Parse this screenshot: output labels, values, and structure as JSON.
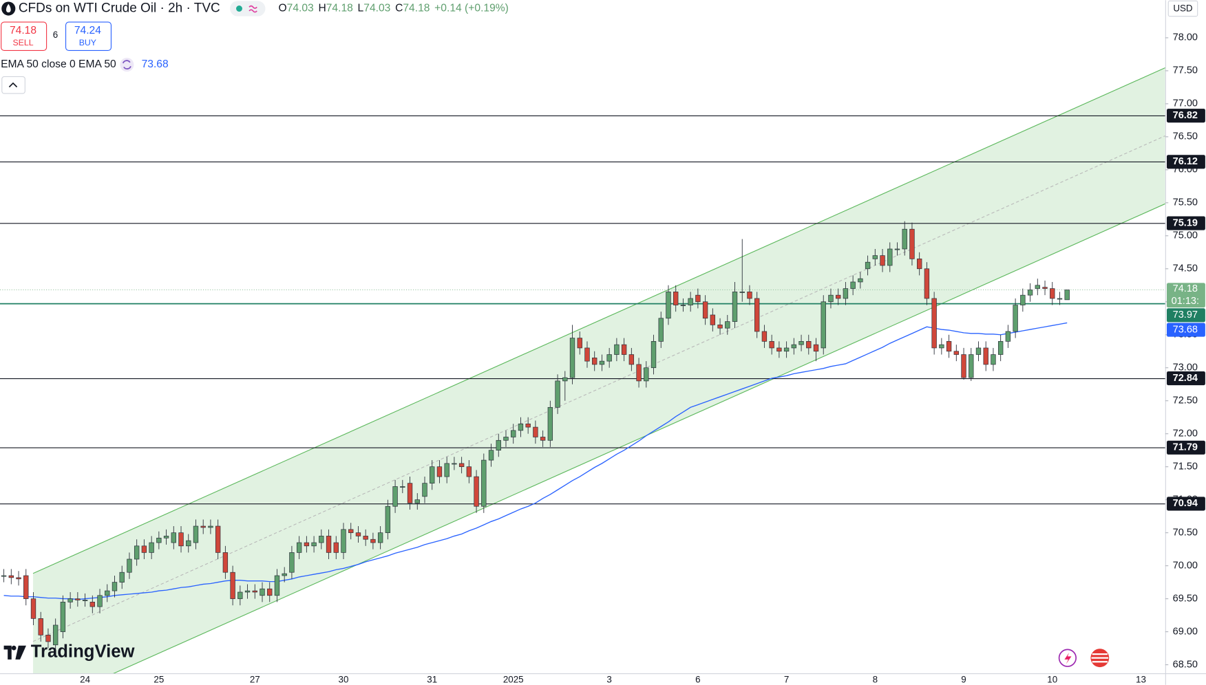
{
  "header": {
    "title": "CFDs on WTI Crude Oil · 2h · TVC",
    "ohlc": [
      {
        "label": "O",
        "value": 74.03
      },
      {
        "label": "H",
        "value": 74.18
      },
      {
        "label": "L",
        "value": 74.03
      },
      {
        "label": "C",
        "value": 74.18
      }
    ],
    "change": "+0.14 (+0.19%)"
  },
  "trade": {
    "sell_price": 74.18,
    "sell_label": "SELL",
    "spread": 6,
    "buy_price": 74.24,
    "buy_label": "BUY"
  },
  "currency": "USD",
  "logo": "TradingView",
  "chart_data": {
    "type": "candlestick",
    "title": "CFDs on WTI Crude Oil · 2h · TVC",
    "up_color": "#5f9f6e",
    "down_color": "#d0473a",
    "ylim": [
      68.37,
      78.57
    ],
    "yticks": [
      {
        "value": 68.5,
        "label": "68.50"
      },
      {
        "value": 69,
        "label": "69.00"
      },
      {
        "value": 69.5,
        "label": "69.50"
      },
      {
        "value": 70,
        "label": "70.00"
      },
      {
        "value": 70.5,
        "label": "70.50"
      },
      {
        "value": 71,
        "label": "71.00"
      },
      {
        "value": 71.5,
        "label": "71.50"
      },
      {
        "value": 72,
        "label": "72.00"
      },
      {
        "value": 72.5,
        "label": "72.50"
      },
      {
        "value": 73,
        "label": "73.00"
      },
      {
        "value": 73.5,
        "label": "73.50"
      },
      {
        "value": 74,
        "label": "74.00"
      },
      {
        "value": 74.5,
        "label": "74.50"
      },
      {
        "value": 75,
        "label": "75.00"
      },
      {
        "value": 75.5,
        "label": "75.50"
      },
      {
        "value": 76,
        "label": "76.00"
      },
      {
        "value": 76.5,
        "label": "76.50"
      },
      {
        "value": 77,
        "label": "77.00"
      },
      {
        "value": 77.5,
        "label": "77.50"
      },
      {
        "value": 78,
        "label": "78.00"
      }
    ],
    "levels": [
      76.82,
      76.12,
      75.19,
      72.84,
      71.79,
      70.94
    ],
    "support": {
      "value": 73.97,
      "color": "#1f7f62"
    },
    "price_label": {
      "value": 74.18,
      "countdown": "01:13:",
      "color": "#78b386"
    },
    "categories": [
      null,
      null,
      null,
      null,
      null,
      null,
      null,
      null,
      null,
      null,
      null,
      "24",
      null,
      null,
      null,
      null,
      null,
      null,
      null,
      null,
      null,
      "25",
      null,
      null,
      null,
      null,
      null,
      null,
      null,
      null,
      null,
      null,
      null,
      null,
      "27",
      null,
      null,
      null,
      null,
      null,
      null,
      null,
      null,
      null,
      null,
      null,
      "30",
      null,
      null,
      null,
      null,
      null,
      null,
      null,
      null,
      null,
      null,
      null,
      "31",
      null,
      null,
      null,
      null,
      null,
      null,
      null,
      null,
      null,
      null,
      "2025",
      null,
      null,
      null,
      null,
      null,
      null,
      null,
      null,
      null,
      null,
      null,
      null,
      "3",
      null,
      null,
      null,
      null,
      null,
      null,
      null,
      null,
      null,
      null,
      null,
      "6",
      null,
      null,
      null,
      null,
      null,
      null,
      null,
      null,
      null,
      null,
      null,
      "7",
      null,
      null,
      null,
      null,
      null,
      null,
      null,
      null,
      null,
      null,
      null,
      "8",
      null,
      null,
      null,
      null,
      null,
      null,
      null,
      null,
      null,
      null,
      null,
      "9",
      null,
      null,
      null,
      null,
      null,
      null,
      null,
      null,
      null,
      null,
      null,
      "10",
      null,
      null,
      null,
      null,
      null,
      null,
      null,
      null,
      null,
      null,
      null,
      "13",
      null,
      null,
      null
    ],
    "open": [
      69.85,
      69.85,
      69.82,
      69.85,
      69.5,
      69.2,
      68.95,
      68.8,
      69.0,
      69.45,
      69.5,
      69.48,
      69.45,
      69.38,
      69.55,
      69.62,
      69.75,
      69.9,
      70.1,
      70.3,
      70.2,
      70.35,
      70.42,
      70.35,
      70.5,
      70.3,
      70.35,
      70.6,
      70.58,
      70.6,
      70.2,
      69.9,
      69.5,
      69.6,
      69.62,
      69.55,
      69.65,
      69.55,
      69.85,
      69.9,
      70.2,
      70.35,
      70.3,
      70.35,
      70.45,
      70.35,
      70.2,
      70.55,
      70.5,
      70.45,
      70.4,
      70.35,
      70.5,
      70.9,
      71.2,
      71.25,
      70.95,
      71.05,
      71.25,
      71.5,
      71.35,
      71.55,
      71.55,
      71.5,
      71.35,
      70.9,
      71.6,
      71.75,
      71.9,
      71.95,
      72.05,
      72.15,
      72.1,
      71.95,
      71.9,
      72.4,
      72.8,
      72.85,
      73.45,
      73.3,
      73.15,
      73.05,
      73.1,
      73.2,
      73.35,
      73.2,
      73.05,
      72.8,
      73.0,
      73.4,
      73.75,
      74.15,
      73.95,
      73.95,
      74.1,
      74.0,
      73.8,
      73.65,
      73.6,
      73.7,
      74.15,
      74.15,
      74.05,
      73.55,
      73.4,
      73.3,
      73.25,
      73.3,
      73.35,
      73.4,
      73.35,
      73.3,
      74.0,
      74.1,
      74.05,
      74.2,
      74.3,
      74.5,
      74.65,
      74.7,
      74.55,
      74.8,
      74.8,
      75.1,
      74.65,
      74.5,
      74.05,
      73.3,
      73.4,
      73.25,
      73.2,
      72.85,
      73.2,
      73.3,
      73.05,
      73.2,
      73.4,
      73.55,
      73.95,
      74.1,
      74.2,
      74.22,
      74.2,
      74.05,
      74.03,
      null,
      null,
      null,
      null,
      null,
      null,
      null,
      null,
      null,
      null,
      null,
      null,
      null
    ],
    "high": [
      69.95,
      69.95,
      69.92,
      69.95,
      69.6,
      69.3,
      69.05,
      69.2,
      69.55,
      69.6,
      69.6,
      69.58,
      69.55,
      69.65,
      69.72,
      69.85,
      70.0,
      70.2,
      70.4,
      70.4,
      70.45,
      70.52,
      70.55,
      70.6,
      70.6,
      70.48,
      70.7,
      70.7,
      70.7,
      70.7,
      70.3,
      70.0,
      69.7,
      69.72,
      69.72,
      69.75,
      69.75,
      69.95,
      69.98,
      70.3,
      70.45,
      70.45,
      70.45,
      70.55,
      70.55,
      70.45,
      70.65,
      70.65,
      70.6,
      70.55,
      70.5,
      70.6,
      71.0,
      71.3,
      71.3,
      71.35,
      71.1,
      71.35,
      71.6,
      71.6,
      71.65,
      71.65,
      71.65,
      71.6,
      71.45,
      71.7,
      71.85,
      72.0,
      72.05,
      72.15,
      72.25,
      72.25,
      72.2,
      72.05,
      72.5,
      72.9,
      72.95,
      73.65,
      73.55,
      73.4,
      73.25,
      73.2,
      73.3,
      73.45,
      73.45,
      73.3,
      73.15,
      73.1,
      73.5,
      73.85,
      74.25,
      74.25,
      74.05,
      74.15,
      74.2,
      74.1,
      73.9,
      73.75,
      73.8,
      74.3,
      74.95,
      74.25,
      74.15,
      73.65,
      73.5,
      73.4,
      73.4,
      73.45,
      73.5,
      73.5,
      73.45,
      74.1,
      74.2,
      74.2,
      74.3,
      74.4,
      74.45,
      74.7,
      74.8,
      74.8,
      74.9,
      74.9,
      75.22,
      75.2,
      74.75,
      74.6,
      74.15,
      73.45,
      73.5,
      73.35,
      73.3,
      73.3,
      73.4,
      73.4,
      73.3,
      73.5,
      73.65,
      74.05,
      74.2,
      74.28,
      74.35,
      74.32,
      74.3,
      74.15,
      74.18,
      null,
      null,
      null,
      null,
      null,
      null,
      null,
      null,
      null,
      null,
      null,
      null,
      null
    ],
    "low": [
      69.75,
      69.72,
      69.7,
      69.4,
      69.1,
      68.85,
      68.75,
      68.7,
      68.9,
      69.35,
      69.38,
      69.38,
      69.28,
      69.28,
      69.45,
      69.52,
      69.65,
      69.8,
      70.0,
      70.1,
      70.1,
      70.25,
      70.32,
      70.25,
      70.2,
      70.2,
      70.25,
      70.48,
      70.48,
      70.1,
      69.8,
      69.4,
      69.4,
      69.5,
      69.5,
      69.45,
      69.45,
      69.45,
      69.75,
      69.8,
      70.1,
      70.2,
      70.2,
      70.25,
      70.1,
      70.1,
      70.1,
      70.4,
      70.35,
      70.3,
      70.25,
      70.25,
      70.4,
      70.8,
      71.1,
      70.85,
      70.85,
      70.95,
      71.15,
      71.25,
      71.25,
      71.45,
      71.4,
      71.25,
      70.8,
      70.8,
      71.5,
      71.65,
      71.8,
      71.85,
      71.95,
      72.0,
      71.85,
      71.8,
      71.8,
      72.3,
      72.5,
      72.75,
      73.2,
      73.0,
      72.95,
      72.95,
      73.0,
      73.1,
      73.1,
      72.95,
      72.7,
      72.7,
      72.9,
      73.3,
      73.65,
      73.85,
      73.85,
      73.85,
      73.9,
      73.65,
      73.55,
      73.5,
      73.5,
      73.6,
      74.0,
      73.95,
      73.45,
      73.3,
      73.2,
      73.15,
      73.15,
      73.2,
      73.25,
      73.2,
      73.1,
      73.2,
      73.9,
      73.95,
      73.95,
      74.1,
      74.2,
      74.4,
      74.55,
      74.45,
      74.45,
      74.7,
      74.7,
      74.55,
      74.4,
      73.95,
      73.2,
      73.2,
      73.15,
      73.1,
      72.82,
      72.8,
      73.1,
      72.95,
      72.95,
      73.1,
      73.3,
      73.45,
      73.85,
      74.0,
      74.1,
      74.1,
      73.95,
      73.95,
      74.03,
      null,
      null,
      null,
      null,
      null,
      null,
      null,
      null,
      null,
      null,
      null,
      null,
      null
    ],
    "close": [
      69.85,
      69.82,
      69.8,
      69.5,
      69.2,
      68.95,
      68.85,
      69.1,
      69.45,
      69.5,
      69.48,
      69.48,
      69.38,
      69.55,
      69.62,
      69.75,
      69.9,
      70.1,
      70.3,
      70.2,
      70.35,
      70.42,
      70.45,
      70.5,
      70.3,
      70.38,
      70.6,
      70.58,
      70.6,
      70.2,
      69.9,
      69.5,
      69.6,
      69.62,
      69.6,
      69.65,
      69.55,
      69.85,
      69.88,
      70.2,
      70.35,
      70.3,
      70.35,
      70.45,
      70.2,
      70.2,
      70.55,
      70.5,
      70.45,
      70.4,
      70.35,
      70.5,
      70.9,
      71.2,
      71.2,
      70.95,
      71.0,
      71.25,
      71.5,
      71.35,
      71.55,
      71.55,
      71.5,
      71.35,
      70.9,
      71.6,
      71.75,
      71.9,
      71.95,
      72.05,
      72.15,
      72.1,
      71.95,
      71.9,
      72.4,
      72.8,
      72.85,
      73.45,
      73.3,
      73.1,
      73.05,
      73.1,
      73.2,
      73.35,
      73.2,
      73.05,
      72.8,
      73.0,
      73.4,
      73.75,
      74.15,
      73.95,
      73.95,
      74.05,
      74.0,
      73.75,
      73.65,
      73.6,
      73.7,
      74.15,
      74.15,
      74.05,
      73.55,
      73.4,
      73.3,
      73.25,
      73.3,
      73.35,
      73.4,
      73.3,
      73.25,
      74.0,
      74.1,
      74.05,
      74.2,
      74.3,
      74.35,
      74.6,
      74.7,
      74.55,
      74.8,
      74.8,
      75.1,
      74.65,
      74.5,
      74.05,
      73.3,
      73.35,
      73.25,
      73.2,
      72.85,
      73.2,
      73.3,
      73.05,
      73.2,
      73.4,
      73.55,
      73.95,
      74.1,
      74.18,
      74.25,
      74.2,
      74.05,
      74.05,
      74.18,
      null,
      null,
      null,
      null,
      null,
      null,
      null,
      null,
      null,
      null,
      null,
      null,
      null
    ],
    "ema": {
      "label": "EMA 50 close 0 EMA 50",
      "value": 73.68,
      "color": "#2962ff",
      "values": [
        69.55,
        69.54,
        69.54,
        69.53,
        69.53,
        69.52,
        69.51,
        69.51,
        69.5,
        69.5,
        69.49,
        69.5,
        69.51,
        69.52,
        69.53,
        69.55,
        69.56,
        69.57,
        69.58,
        69.59,
        69.6,
        69.62,
        69.63,
        69.65,
        69.67,
        69.68,
        69.7,
        69.72,
        69.73,
        69.75,
        69.77,
        69.78,
        69.78,
        69.77,
        69.77,
        69.77,
        69.76,
        69.76,
        69.78,
        69.8,
        69.83,
        69.85,
        69.87,
        69.89,
        69.91,
        69.94,
        69.96,
        69.99,
        70.02,
        70.06,
        70.09,
        70.12,
        70.15,
        70.19,
        70.22,
        70.25,
        70.28,
        70.32,
        70.35,
        70.38,
        70.41,
        70.45,
        70.48,
        70.53,
        70.57,
        70.62,
        70.67,
        70.71,
        70.76,
        70.81,
        70.86,
        70.9,
        70.95,
        71.02,
        71.08,
        71.15,
        71.22,
        71.29,
        71.35,
        71.42,
        71.49,
        71.55,
        71.62,
        71.69,
        71.75,
        71.82,
        71.89,
        71.97,
        72.04,
        72.11,
        72.18,
        72.26,
        72.33,
        72.4,
        72.44,
        72.48,
        72.52,
        72.56,
        72.6,
        72.64,
        72.68,
        72.72,
        72.76,
        72.8,
        72.84,
        72.86,
        72.88,
        72.91,
        72.93,
        72.95,
        72.97,
        72.99,
        73.02,
        73.04,
        73.06,
        73.11,
        73.16,
        73.21,
        73.26,
        73.31,
        73.37,
        73.42,
        73.47,
        73.52,
        73.57,
        73.62,
        73.6,
        73.58,
        73.57,
        73.55,
        73.53,
        73.52,
        73.52,
        73.51,
        73.51,
        73.5,
        73.52,
        73.54,
        73.56,
        73.58,
        73.6,
        73.62,
        73.64,
        73.66,
        73.68,
        null,
        null,
        null,
        null,
        null,
        null,
        null,
        null,
        null,
        null,
        null,
        null,
        null
      ]
    }
  }
}
